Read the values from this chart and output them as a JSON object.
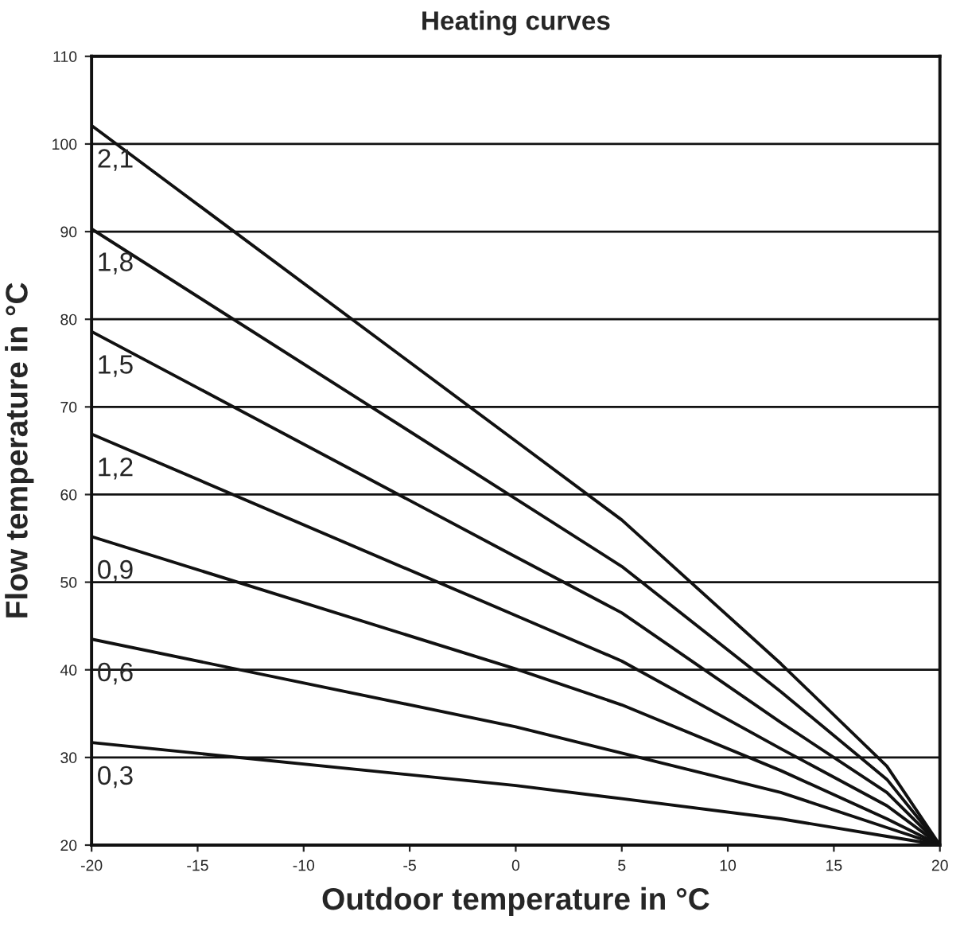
{
  "chart_data": {
    "type": "line",
    "title": "Heating curves",
    "xlabel": "Outdoor temperature in °C",
    "ylabel": "Flow temperature in °C",
    "x": [
      -20,
      0,
      5,
      12.5,
      17.5,
      20
    ],
    "series": [
      {
        "name": "2,1",
        "color": "#111111",
        "values": [
          102.1,
          66.1,
          57.1,
          40.7,
          29.0,
          20
        ]
      },
      {
        "name": "1,8",
        "color": "#111111",
        "values": [
          90.3,
          59.5,
          51.8,
          37.5,
          27.5,
          20
        ]
      },
      {
        "name": "1,5",
        "color": "#111111",
        "values": [
          78.6,
          52.9,
          46.5,
          34,
          26,
          20
        ]
      },
      {
        "name": "1,2",
        "color": "#111111",
        "values": [
          66.9,
          46.2,
          41,
          31,
          24.5,
          20
        ]
      },
      {
        "name": "0,9",
        "color": "#111111",
        "values": [
          55.2,
          40.1,
          36,
          28.5,
          23,
          20
        ]
      },
      {
        "name": "0,6",
        "color": "#111111",
        "values": [
          43.5,
          33.5,
          30.5,
          26,
          22,
          20
        ]
      },
      {
        "name": "0,3",
        "color": "#111111",
        "values": [
          31.7,
          26.8,
          25.3,
          23,
          21,
          20
        ]
      }
    ],
    "xlim": [
      -20,
      20
    ],
    "xticks": [
      -20,
      -15,
      -10,
      -5,
      0,
      5,
      10,
      15,
      20
    ],
    "ylim": [
      20,
      110
    ],
    "yticks": [
      20,
      30,
      40,
      50,
      60,
      70,
      80,
      90,
      100,
      110
    ],
    "grid": "y",
    "legend": false,
    "marker": "none",
    "line_style": "solid"
  }
}
